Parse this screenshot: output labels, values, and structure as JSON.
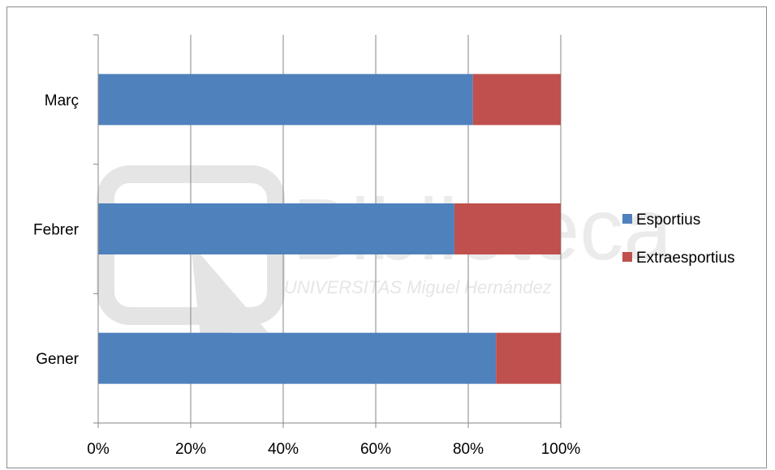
{
  "watermark": {
    "title": "Biblioteca",
    "subtitle": "UNIVERSITAS Miguel Hernández"
  },
  "chart_data": {
    "type": "bar",
    "orientation": "horizontal",
    "stacking": "percent",
    "title": "",
    "xlabel": "",
    "ylabel": "",
    "categories": [
      "Gener",
      "Febrer",
      "Març"
    ],
    "series": [
      {
        "name": "Esportius",
        "color": "#4f81bd",
        "values": [
          86,
          77,
          81
        ]
      },
      {
        "name": "Extraesportius",
        "color": "#c0504d",
        "values": [
          14,
          23,
          19
        ]
      }
    ],
    "xlim": [
      0,
      100
    ],
    "xticks": [
      "0%",
      "20%",
      "40%",
      "60%",
      "80%",
      "100%"
    ],
    "grid": true,
    "legend_position": "right"
  }
}
